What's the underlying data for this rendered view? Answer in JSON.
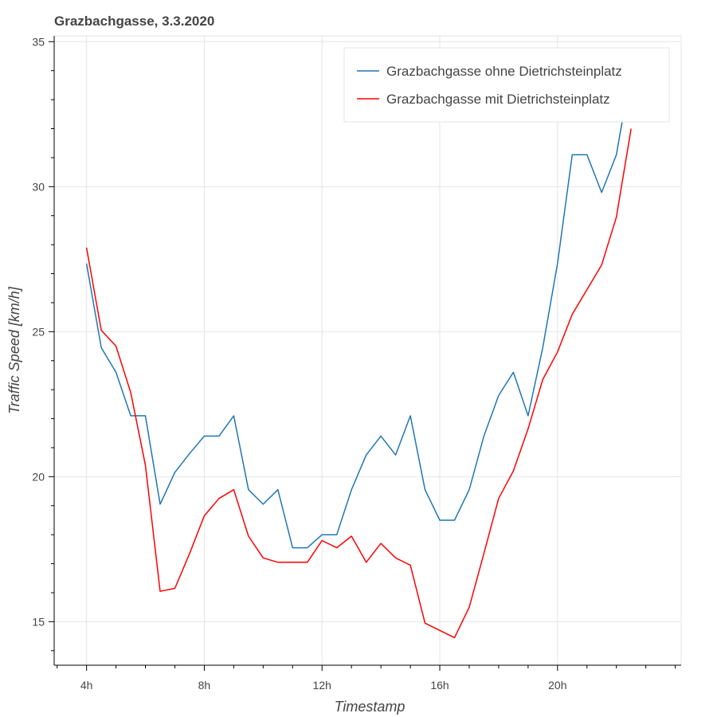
{
  "chart_data": {
    "type": "line",
    "title": "Grazbachgasse, 3.3.2020",
    "xlabel": "Timestamp",
    "ylabel": "Traffic Speed [km/h]",
    "x": [
      4,
      4.5,
      5,
      5.5,
      6,
      6.5,
      7,
      7.5,
      8,
      8.5,
      9,
      9.5,
      10,
      10.5,
      11,
      11.5,
      12,
      12.5,
      13,
      13.5,
      14,
      14.5,
      15,
      15.5,
      16,
      16.5,
      17,
      17.5,
      18,
      18.5,
      19,
      19.5,
      20,
      20.5,
      21,
      21.5,
      22,
      22.5
    ],
    "xlim": [
      2.9,
      24.2
    ],
    "ylim": [
      13.5,
      35.2
    ],
    "xticks": [
      4,
      8,
      12,
      16,
      20
    ],
    "xtick_labels": [
      "4h",
      "8h",
      "12h",
      "16h",
      "20h"
    ],
    "yticks": [
      15,
      20,
      25,
      30,
      35
    ],
    "ytick_labels": [
      "15",
      "20",
      "25",
      "30",
      "35"
    ],
    "grid": true,
    "legend_position": "top-right",
    "series": [
      {
        "name": "Grazbachgasse ohne Dietrichsteinplatz",
        "color": "#1f77b4",
        "values": [
          27.35,
          24.45,
          23.6,
          22.1,
          22.1,
          19.05,
          20.15,
          20.8,
          21.4,
          21.4,
          22.1,
          19.55,
          19.05,
          19.55,
          17.55,
          17.55,
          18.0,
          18.0,
          19.55,
          20.75,
          21.4,
          20.75,
          22.1,
          19.55,
          18.5,
          18.5,
          19.55,
          21.4,
          22.8,
          23.6,
          22.1,
          24.45,
          27.35,
          31.1,
          31.1,
          29.8,
          31.1,
          34.0
        ]
      },
      {
        "name": "Grazbachgasse mit Dietrichsteinplatz",
        "color": "#ff0000",
        "values": [
          27.9,
          25.05,
          24.5,
          22.9,
          20.4,
          16.05,
          16.15,
          17.35,
          18.65,
          19.25,
          19.55,
          17.95,
          17.2,
          17.05,
          17.05,
          17.05,
          17.8,
          17.55,
          17.95,
          17.05,
          17.7,
          17.2,
          16.95,
          14.95,
          14.7,
          14.45,
          15.5,
          17.35,
          19.25,
          20.2,
          21.65,
          23.35,
          24.3,
          25.6,
          26.45,
          27.3,
          28.95,
          32.0
        ]
      }
    ]
  }
}
